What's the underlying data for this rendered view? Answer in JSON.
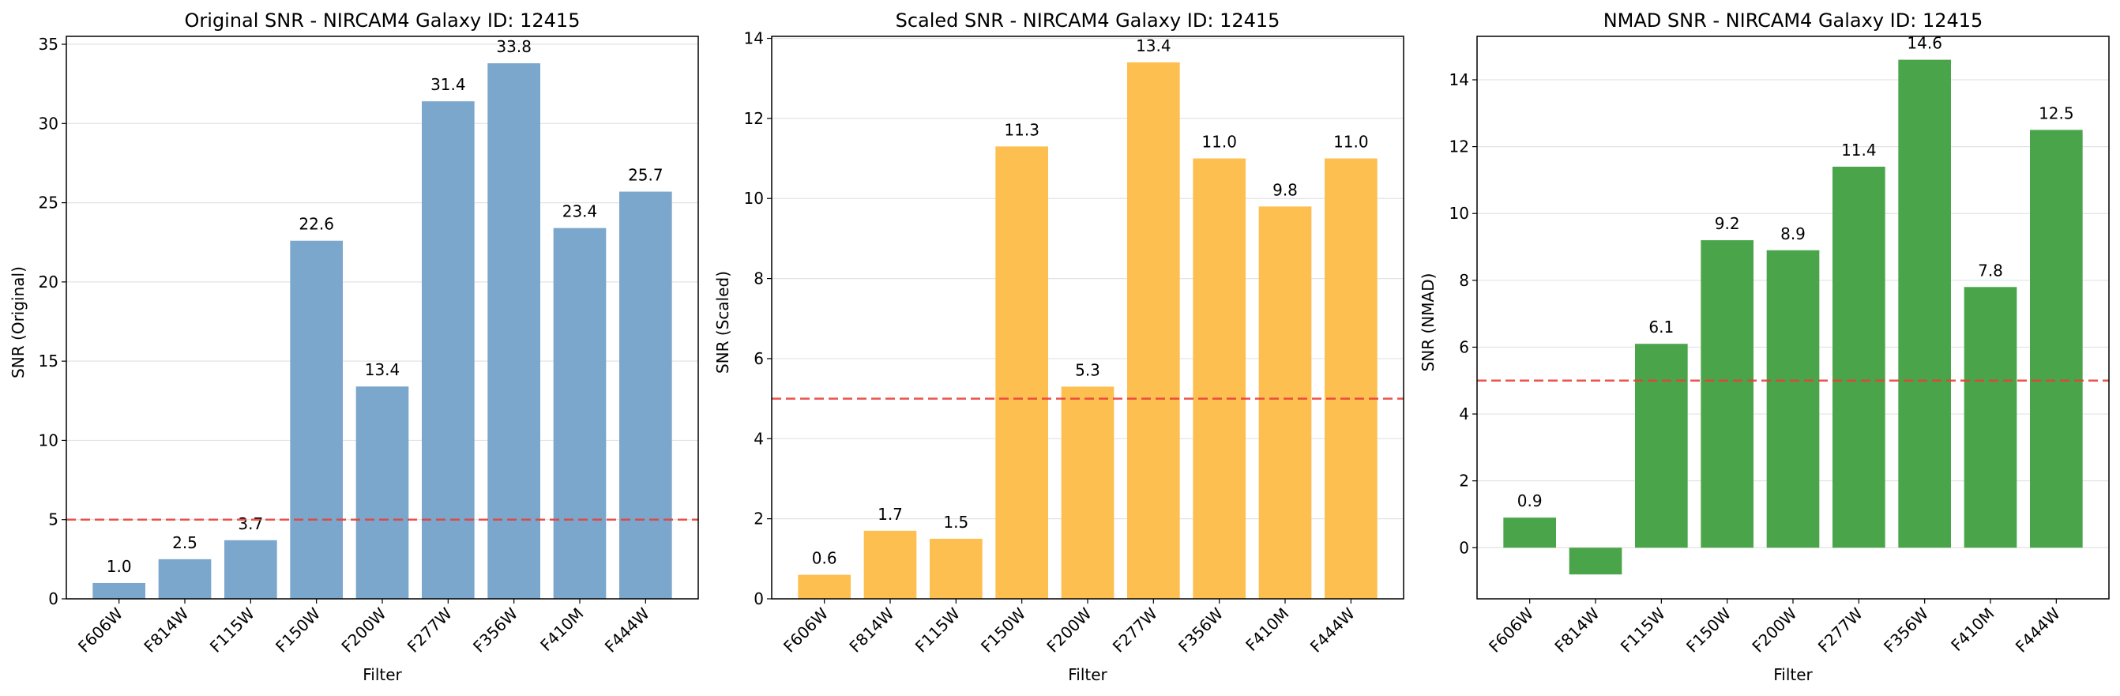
{
  "chart_data": [
    {
      "type": "bar",
      "title": "Original SNR - NIRCAM4 Galaxy ID: 12415",
      "xlabel": "Filter",
      "ylabel": "SNR (Original)",
      "categories": [
        "F606W",
        "F814W",
        "F115W",
        "F150W",
        "F200W",
        "F277W",
        "F356W",
        "F410M",
        "F444W"
      ],
      "values": [
        1.0,
        2.5,
        3.7,
        22.6,
        13.4,
        31.4,
        33.8,
        23.4,
        25.7
      ],
      "value_labels": [
        "1.0",
        "2.5",
        "3.7",
        "22.6",
        "13.4",
        "31.4",
        "33.8",
        "23.4",
        "25.7"
      ],
      "ylim": [
        0,
        35.5
      ],
      "yticks": [
        0,
        5,
        10,
        15,
        20,
        25,
        30,
        35
      ],
      "threshold": 5,
      "bar_color": "#7ba7cc",
      "threshold_color": "#e8403a",
      "grid": "y"
    },
    {
      "type": "bar",
      "title": "Scaled SNR - NIRCAM4 Galaxy ID: 12415",
      "xlabel": "Filter",
      "ylabel": "SNR (Scaled)",
      "categories": [
        "F606W",
        "F814W",
        "F115W",
        "F150W",
        "F200W",
        "F277W",
        "F356W",
        "F410M",
        "F444W"
      ],
      "values": [
        0.6,
        1.7,
        1.5,
        11.3,
        5.3,
        13.4,
        11.0,
        9.8,
        11.0
      ],
      "value_labels": [
        "0.6",
        "1.7",
        "1.5",
        "11.3",
        "5.3",
        "13.4",
        "11.0",
        "9.8",
        "11.0"
      ],
      "ylim": [
        0,
        14.05
      ],
      "yticks": [
        0,
        2,
        4,
        6,
        8,
        10,
        12,
        14
      ],
      "threshold": 5,
      "bar_color": "#fdbf4f",
      "threshold_color": "#e8403a",
      "grid": "y"
    },
    {
      "type": "bar",
      "title": "NMAD SNR - NIRCAM4 Galaxy ID: 12415",
      "xlabel": "Filter",
      "ylabel": "SNR (NMAD)",
      "categories": [
        "F606W",
        "F814W",
        "F115W",
        "F150W",
        "F200W",
        "F277W",
        "F356W",
        "F410M",
        "F444W"
      ],
      "values": [
        0.9,
        -0.8,
        6.1,
        9.2,
        8.9,
        11.4,
        14.6,
        7.8,
        12.5
      ],
      "value_labels": [
        "0.9",
        "",
        "6.1",
        "9.2",
        "8.9",
        "11.4",
        "14.6",
        "7.8",
        "12.5"
      ],
      "ylim": [
        -1.53,
        15.3
      ],
      "yticks": [
        0,
        2,
        4,
        6,
        8,
        10,
        12,
        14
      ],
      "threshold": 5,
      "bar_color": "#4aa54a",
      "threshold_color": "#e8403a",
      "grid": "y"
    }
  ]
}
